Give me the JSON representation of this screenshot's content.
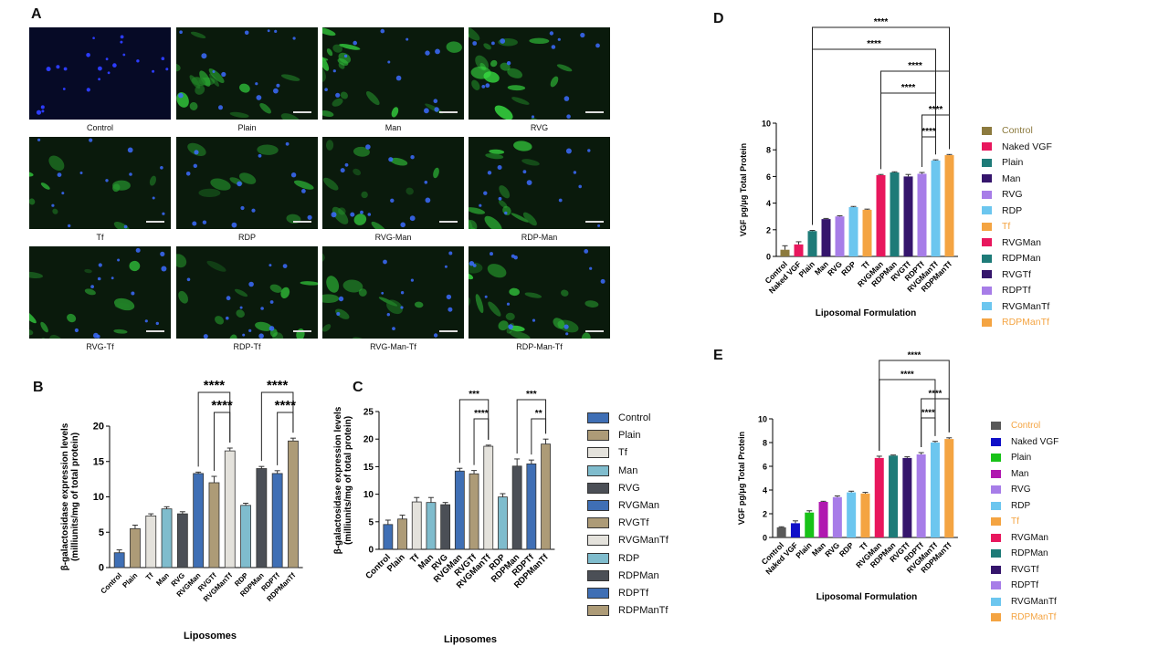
{
  "panels": {
    "A": {
      "letter": "A"
    },
    "B": {
      "letter": "B"
    },
    "C": {
      "letter": "C"
    },
    "D": {
      "letter": "D"
    },
    "E": {
      "letter": "E"
    }
  },
  "micrographs": [
    {
      "label": "Control",
      "kind": "dapi"
    },
    {
      "label": "Plain",
      "kind": "green"
    },
    {
      "label": "Man",
      "kind": "green"
    },
    {
      "label": "RVG",
      "kind": "green"
    },
    {
      "label": "Tf",
      "kind": "green"
    },
    {
      "label": "RDP",
      "kind": "green"
    },
    {
      "label": "RVG-Man",
      "kind": "green"
    },
    {
      "label": "RDP-Man",
      "kind": "green"
    },
    {
      "label": "RVG-Tf",
      "kind": "green"
    },
    {
      "label": "RDP-Tf",
      "kind": "green"
    },
    {
      "label": "RVG-Man-Tf",
      "kind": "green"
    },
    {
      "label": "RDP-Man-Tf",
      "kind": "green"
    }
  ],
  "chart_data": [
    {
      "id": "B",
      "type": "bar",
      "title": "",
      "xlabel": "Liposomes",
      "ylabel": "β-galactosidase expression levels",
      "ylabel2": "(milliunits/mg of total protein)",
      "ylim": [
        0,
        20
      ],
      "yticks": [
        "0",
        "5",
        "10",
        "15",
        "20"
      ],
      "categories": [
        "Control",
        "Plain",
        "Tf",
        "Man",
        "RVG",
        "RVGMan",
        "RVGTf",
        "RVGManTf",
        "RDP",
        "RDPMan",
        "RDPTf",
        "RDPManTf"
      ],
      "values": [
        2.1,
        5.5,
        7.3,
        8.3,
        7.6,
        13.3,
        12.0,
        16.5,
        8.8,
        14.0,
        13.3,
        17.9
      ],
      "errors": [
        0.4,
        0.5,
        0.3,
        0.3,
        0.3,
        0.2,
        0.9,
        0.4,
        0.3,
        0.3,
        0.4,
        0.4
      ],
      "colors": [
        "#3f6fb5",
        "#ad9b77",
        "#e4e2dc",
        "#7fbccd",
        "#4b4f56",
        "#3f6fb5",
        "#ad9b77",
        "#e4e2dc",
        "#7fbccd",
        "#4b4f56",
        "#3f6fb5",
        "#ad9b77"
      ],
      "significance": [
        {
          "from": 5,
          "to": 7,
          "label": "****",
          "level": 2
        },
        {
          "from": 6,
          "to": 7,
          "label": "****",
          "level": 1
        },
        {
          "from": 9,
          "to": 11,
          "label": "****",
          "level": 2
        },
        {
          "from": 10,
          "to": 11,
          "label": "****",
          "level": 1
        }
      ]
    },
    {
      "id": "C",
      "type": "bar",
      "title": "",
      "xlabel": "Liposomes",
      "ylabel": "β-galactosidase expression levels",
      "ylabel2": "(milliunits/mg of total protein)",
      "ylim": [
        0,
        25
      ],
      "yticks": [
        "0",
        "5",
        "10",
        "15",
        "20",
        "25"
      ],
      "categories": [
        "Control",
        "Plain",
        "Tf",
        "Man",
        "RVG",
        "RVGMan",
        "RVGTf",
        "RVGManTf",
        "RDP",
        "RDPMan",
        "RDPTf",
        "RDPManTf"
      ],
      "values": [
        4.5,
        5.5,
        8.6,
        8.5,
        8.1,
        14.2,
        13.7,
        18.7,
        9.5,
        15.1,
        15.5,
        19.1
      ],
      "errors": [
        0.8,
        0.7,
        0.8,
        0.9,
        0.4,
        0.5,
        0.6,
        0.2,
        0.6,
        1.3,
        0.7,
        0.9
      ],
      "colors": [
        "#3f6fb5",
        "#ad9b77",
        "#e4e2dc",
        "#7fbccd",
        "#4b4f56",
        "#3f6fb5",
        "#ad9b77",
        "#e4e2dc",
        "#7fbccd",
        "#4b4f56",
        "#3f6fb5",
        "#ad9b77"
      ],
      "legend": [
        "Control",
        "Plain",
        "Tf",
        "Man",
        "RVG",
        "RVGMan",
        "RVGTf",
        "RVGManTf",
        "RDP",
        "RDPMan",
        "RDPTf",
        "RDPManTf"
      ],
      "significance": [
        {
          "from": 5,
          "to": 7,
          "label": "***",
          "level": 2
        },
        {
          "from": 6,
          "to": 7,
          "label": "****",
          "level": 1
        },
        {
          "from": 9,
          "to": 11,
          "label": "***",
          "level": 2
        },
        {
          "from": 10,
          "to": 11,
          "label": "**",
          "level": 1
        }
      ]
    },
    {
      "id": "D",
      "type": "bar",
      "title": "",
      "xlabel": "Liposomal Formulation",
      "ylabel": "VGF pg/μg Total Protein",
      "ylim": [
        0,
        10
      ],
      "yticks": [
        "0",
        "2",
        "4",
        "6",
        "8",
        "10"
      ],
      "categories": [
        "Control",
        "Naked VGF",
        "Plain",
        "Man",
        "RVG",
        "RDP",
        "Tf",
        "RVGMan",
        "RDPMan",
        "RVGTf",
        "RDPTf",
        "RVGManTf",
        "RDPManTf"
      ],
      "values": [
        0.5,
        0.9,
        1.9,
        2.8,
        3.0,
        3.7,
        3.5,
        6.1,
        6.3,
        6.0,
        6.2,
        7.2,
        7.6
      ],
      "errors": [
        0.3,
        0.2,
        0.05,
        0.05,
        0.05,
        0.05,
        0.05,
        0.05,
        0.05,
        0.15,
        0.1,
        0.05,
        0.05
      ],
      "colors": [
        "#8c7a3e",
        "#e8175d",
        "#1e7b78",
        "#35156c",
        "#a77de8",
        "#6cc6ef",
        "#f4a442",
        "#e8175d",
        "#1e7b78",
        "#35156c",
        "#a77de8",
        "#6cc6ef",
        "#f4a442"
      ],
      "legend": [
        "Control",
        "Naked VGF",
        "Plain",
        "Man",
        "RVG",
        "RDP",
        "Tf",
        "RVGMan",
        "RDPMan",
        "RVGTf",
        "RDPTf",
        "RVGManTf",
        "RDPManTf"
      ],
      "legend_text_colors": [
        "#8c7a3e",
        "#111111",
        "#111111",
        "#111111",
        "#111111",
        "#111111",
        "#f4a442",
        "#111111",
        "#111111",
        "#111111",
        "#111111",
        "#111111",
        "#f4a442"
      ],
      "significance": [
        {
          "from": 2,
          "to": 12,
          "label": "****",
          "level": 6
        },
        {
          "from": 2,
          "to": 11,
          "label": "****",
          "level": 5
        },
        {
          "from": 7,
          "to": 12,
          "label": "****",
          "level": 4
        },
        {
          "from": 7,
          "to": 11,
          "label": "****",
          "level": 3
        },
        {
          "from": 10,
          "to": 12,
          "label": "****",
          "level": 2
        },
        {
          "from": 10,
          "to": 11,
          "label": "****",
          "level": 1
        }
      ]
    },
    {
      "id": "E",
      "type": "bar",
      "title": "",
      "xlabel": "Liposomal Formulation",
      "ylabel": "VGF pg/μg Total Protein",
      "ylim": [
        0,
        10
      ],
      "yticks": [
        "0",
        "2",
        "4",
        "6",
        "8",
        "10"
      ],
      "categories": [
        "Control",
        "Naked VGF",
        "Plain",
        "Man",
        "RVG",
        "RDP",
        "Tf",
        "RVGMan",
        "RDPMan",
        "RVGTf",
        "RDPTf",
        "RVGManTf",
        "RDPManTf"
      ],
      "values": [
        0.85,
        1.2,
        2.1,
        3.0,
        3.4,
        3.8,
        3.7,
        6.7,
        6.9,
        6.7,
        7.0,
        8.0,
        8.3
      ],
      "errors": [
        0.05,
        0.2,
        0.15,
        0.05,
        0.1,
        0.1,
        0.1,
        0.15,
        0.05,
        0.1,
        0.15,
        0.1,
        0.1
      ],
      "colors": [
        "#595959",
        "#1010c8",
        "#18c218",
        "#b018b0",
        "#a77de8",
        "#6cc6ef",
        "#f4a442",
        "#e8175d",
        "#1e7b78",
        "#35156c",
        "#a77de8",
        "#6cc6ef",
        "#f4a442"
      ],
      "legend": [
        "Control",
        "Naked VGF",
        "Plain",
        "Man",
        "RVG",
        "RDP",
        "Tf",
        "RVGMan",
        "RDPMan",
        "RVGTf",
        "RDPTf",
        "RVGManTf",
        "RDPManTf"
      ],
      "legend_text_colors": [
        "#f4a442",
        "#111111",
        "#111111",
        "#111111",
        "#111111",
        "#111111",
        "#f4a442",
        "#111111",
        "#111111",
        "#111111",
        "#111111",
        "#111111",
        "#f4a442"
      ],
      "significance": [
        {
          "from": 7,
          "to": 12,
          "label": "****",
          "level": 4
        },
        {
          "from": 7,
          "to": 11,
          "label": "****",
          "level": 3
        },
        {
          "from": 10,
          "to": 12,
          "label": "****",
          "level": 2
        },
        {
          "from": 10,
          "to": 11,
          "label": "****",
          "level": 1
        }
      ]
    }
  ]
}
